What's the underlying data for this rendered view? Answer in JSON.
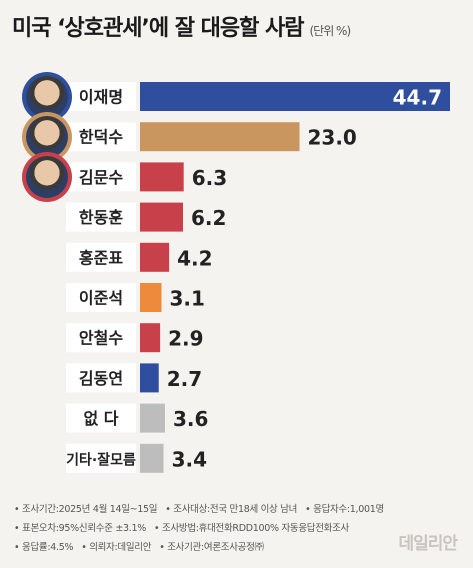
{
  "header": {
    "title": "미국 ‘상호관세’에 잘 대응할 사람",
    "unit": "(단위 %)"
  },
  "chart_data": {
    "type": "bar",
    "orientation": "horizontal",
    "title": "미국 ‘상호관세’에 잘 대응할 사람",
    "unit": "(단위 %)",
    "categories": [
      "이재명",
      "한덕수",
      "김문수",
      "한동훈",
      "홍준표",
      "이준석",
      "안철수",
      "김동연",
      "없 다",
      "기타·잘모름"
    ],
    "values": [
      44.7,
      23.0,
      6.3,
      6.2,
      4.2,
      3.1,
      2.9,
      2.7,
      3.6,
      3.4
    ],
    "value_labels": [
      "44.7",
      "23.0",
      "6.3",
      "6.2",
      "4.2",
      "3.1",
      "2.9",
      "2.7",
      "3.6",
      "3.4"
    ],
    "bar_colors": [
      "#2f4f9e",
      "#c9965f",
      "#c8414a",
      "#c8414a",
      "#c8414a",
      "#ee8a3c",
      "#c8414a",
      "#2f4f9e",
      "#bdbdbd",
      "#bdbdbd"
    ],
    "label_box_color": "#ffffff",
    "xlim": [
      0,
      44.7
    ]
  },
  "avatars": [
    {
      "name": "이재명",
      "ring_color": "#2f4f9e"
    },
    {
      "name": "한덕수",
      "ring_color": "#c9965f"
    },
    {
      "name": "김문수",
      "ring_color": "#c8414a"
    }
  ],
  "footer": {
    "line1a": "• 조사기간:2025년 4월 14일~15일",
    "line1b": "• 조사대상:전국 만18세 이상 남녀",
    "line1c": "• 응답자수:1,001명",
    "line2a": "• 표본오차:95%신뢰수준 ±3.1%",
    "line2b": "• 조사방법:휴대전화RDD100% 자동응답전화조사",
    "line3a": "• 응답률:4.5%",
    "line3b": "• 의뢰자:데일리안",
    "line3c": "• 조사기관:여론조사공정㈜"
  },
  "logo": "데일리안"
}
